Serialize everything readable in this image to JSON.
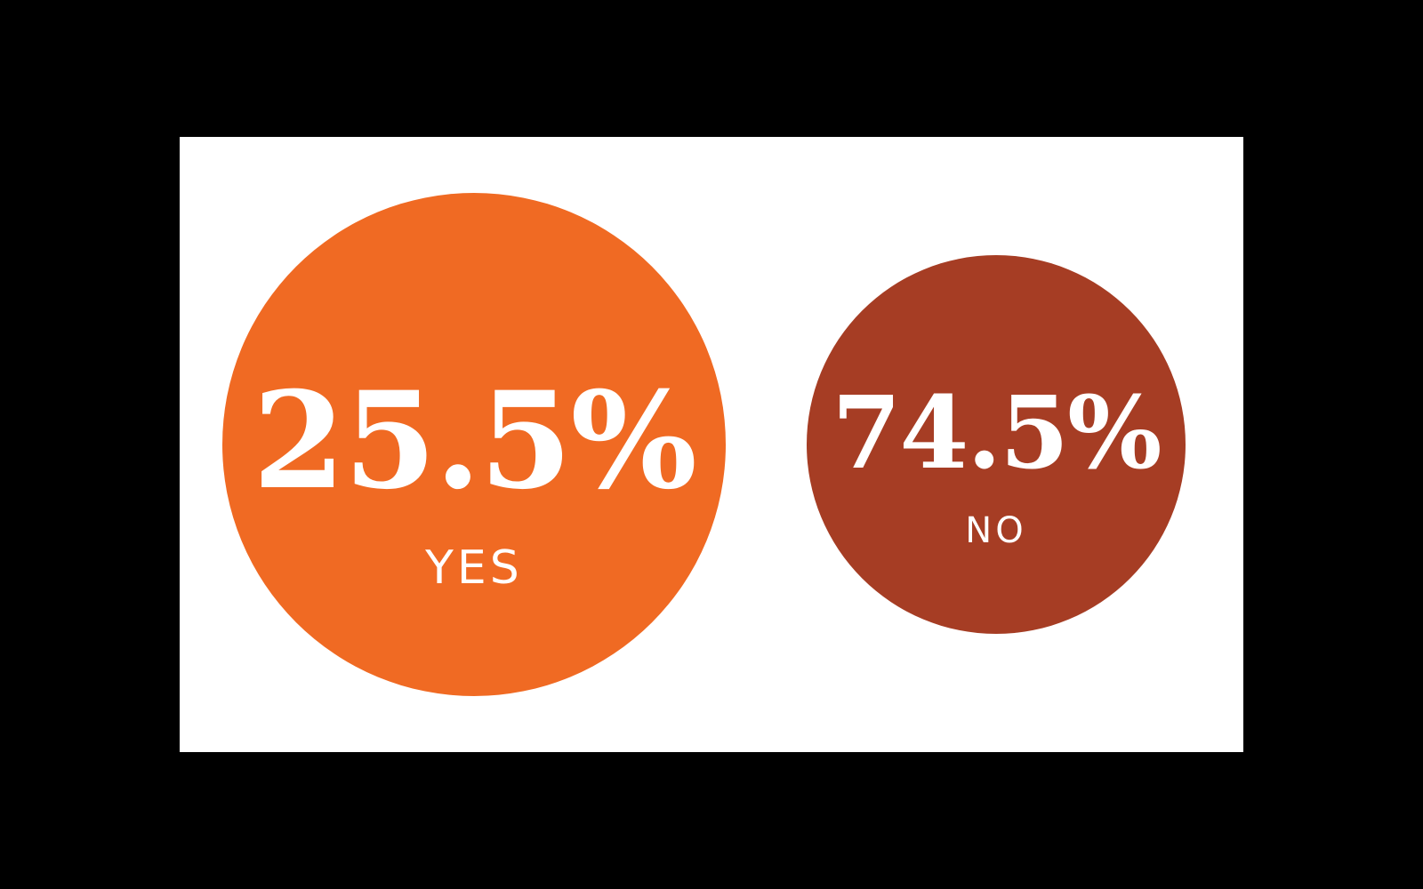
{
  "chart_data": {
    "type": "bubble",
    "categories": [
      "YES",
      "NO"
    ],
    "values": [
      25.5,
      74.5
    ],
    "value_labels": [
      "25.5%",
      "74.5%"
    ],
    "colors": [
      "#f06a23",
      "#a63d24"
    ],
    "unit": "%"
  }
}
